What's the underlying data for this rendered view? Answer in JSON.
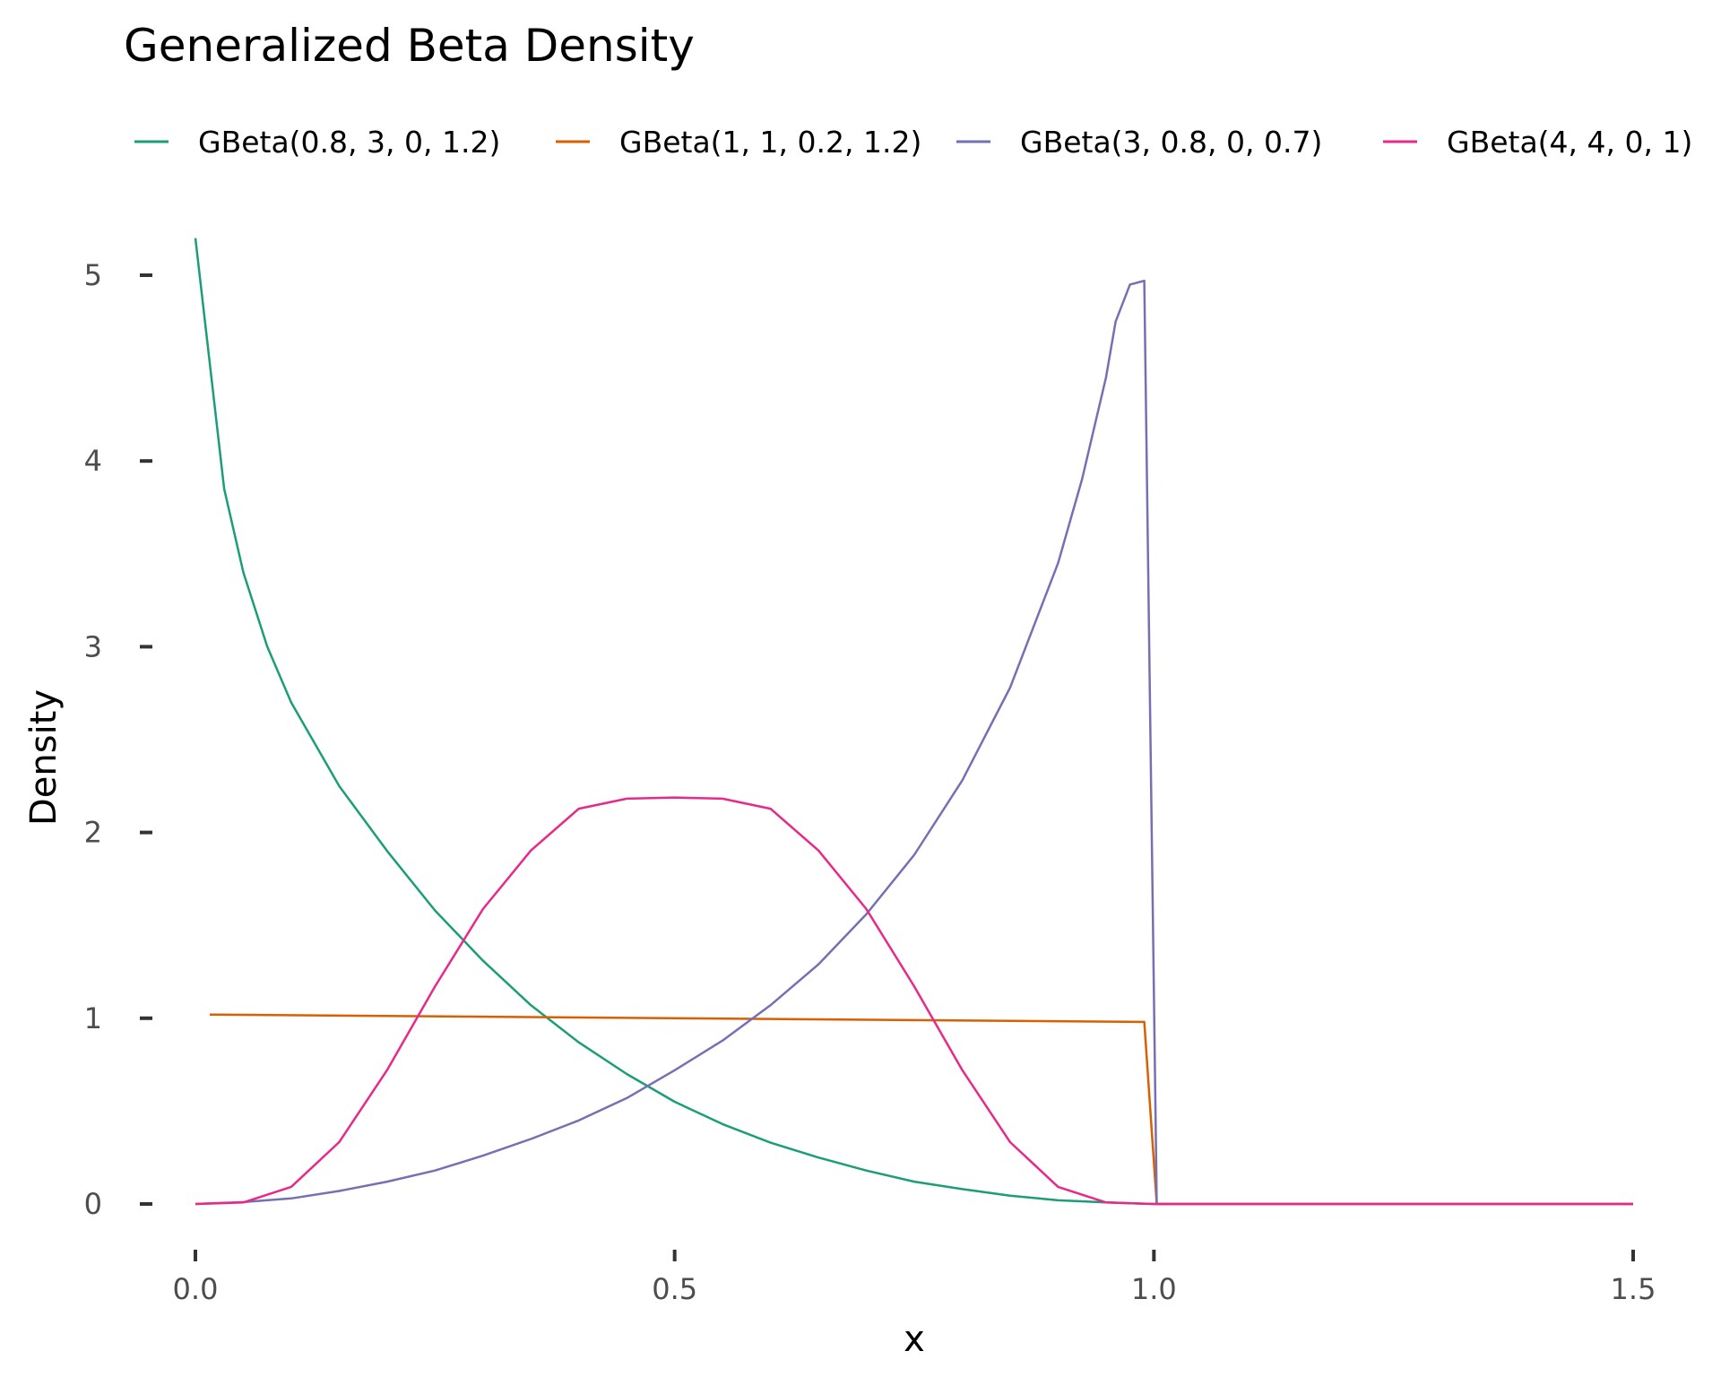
{
  "chart_data": {
    "type": "line",
    "title": "Generalized Beta Density",
    "xlabel": "x",
    "ylabel": "Density",
    "xlim": [
      0,
      1.5
    ],
    "ylim": [
      0,
      5.2
    ],
    "x_ticks": [
      0.0,
      0.5,
      1.0,
      1.5
    ],
    "x_tick_labels": [
      "0.0",
      "0.5",
      "1.0",
      "1.5"
    ],
    "y_ticks": [
      0,
      1,
      2,
      3,
      4,
      5
    ],
    "y_tick_labels": [
      "0",
      "1",
      "2",
      "3",
      "4",
      "5"
    ],
    "grid": false,
    "legend_position": "top",
    "series": [
      {
        "name": "GBeta(0.8, 3, 0, 1.2)",
        "color": "#1b9e77",
        "x": [
          0.0,
          0.03,
          0.05,
          0.075,
          0.1,
          0.15,
          0.2,
          0.25,
          0.3,
          0.35,
          0.4,
          0.45,
          0.5,
          0.55,
          0.6,
          0.65,
          0.7,
          0.75,
          0.8,
          0.85,
          0.9,
          0.95,
          1.0,
          1.5
        ],
        "y": [
          5.2,
          3.85,
          3.4,
          3.0,
          2.7,
          2.25,
          1.9,
          1.58,
          1.31,
          1.07,
          0.87,
          0.7,
          0.55,
          0.43,
          0.33,
          0.25,
          0.18,
          0.12,
          0.08,
          0.045,
          0.02,
          0.008,
          0.0,
          0.0
        ]
      },
      {
        "name": "GBeta(1, 1, 0.2, 1.2)",
        "color": "#d95f02",
        "x": [
          0.015,
          0.99,
          1.003,
          1.5
        ],
        "y": [
          1.02,
          0.98,
          0.0,
          0.0
        ]
      },
      {
        "name": "GBeta(3, 0.8, 0, 0.7)",
        "color": "#7570b3",
        "x": [
          0.0,
          0.05,
          0.1,
          0.15,
          0.2,
          0.25,
          0.3,
          0.35,
          0.4,
          0.45,
          0.5,
          0.55,
          0.6,
          0.65,
          0.7,
          0.75,
          0.8,
          0.85,
          0.9,
          0.925,
          0.95,
          0.96,
          0.975,
          0.99,
          1.003,
          1.5
        ],
        "y": [
          0.0,
          0.01,
          0.03,
          0.07,
          0.12,
          0.18,
          0.26,
          0.35,
          0.45,
          0.57,
          0.72,
          0.88,
          1.07,
          1.29,
          1.56,
          1.88,
          2.28,
          2.78,
          3.45,
          3.9,
          4.45,
          4.75,
          4.95,
          4.97,
          0.0,
          0.0
        ]
      },
      {
        "name": "GBeta(4, 4, 0, 1)",
        "color": "#e7298a",
        "x": [
          0.0,
          0.05,
          0.1,
          0.15,
          0.2,
          0.25,
          0.3,
          0.35,
          0.4,
          0.45,
          0.5,
          0.55,
          0.6,
          0.65,
          0.7,
          0.75,
          0.8,
          0.85,
          0.9,
          0.95,
          1.0,
          1.5
        ],
        "y": [
          0.0,
          0.008,
          0.092,
          0.333,
          0.721,
          1.171,
          1.588,
          1.903,
          2.128,
          2.182,
          2.188,
          2.182,
          2.128,
          1.903,
          1.588,
          1.171,
          0.721,
          0.333,
          0.092,
          0.008,
          0.0,
          0.0
        ]
      }
    ]
  }
}
